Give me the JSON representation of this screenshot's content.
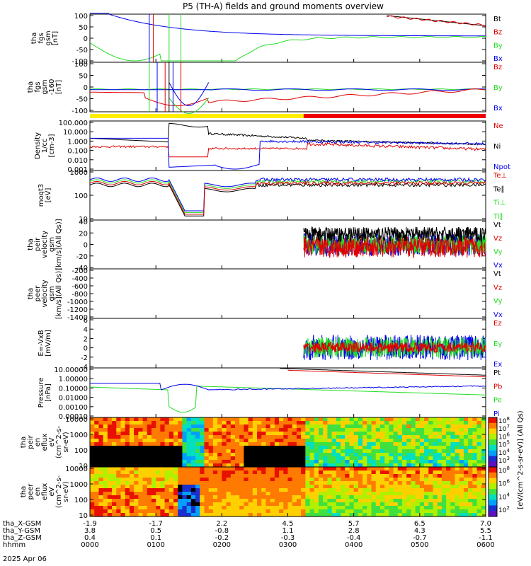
{
  "title": "P5 (TH-A) fields and ground moments overview",
  "colors": {
    "black": "#000000",
    "red": "#e00000",
    "green": "#22dd22",
    "blue": "#0000ee",
    "yellow": "#ffee00",
    "bar_red": "#ee0000"
  },
  "chart_data": [
    {
      "type": "line",
      "id": "p1",
      "ylabel": [
        "tha",
        "fgs",
        "gsm",
        "[nT]"
      ],
      "yticks": [
        "100",
        "50",
        "0",
        "-50",
        "-100"
      ],
      "ylim": [
        -100,
        100
      ],
      "series": [
        {
          "name": "Bt",
          "color": "black"
        },
        {
          "name": "Bz",
          "color": "red"
        },
        {
          "name": "By",
          "color": "green"
        },
        {
          "name": "Bx",
          "color": "blue"
        }
      ]
    },
    {
      "type": "line",
      "id": "p2",
      "ylabel": [
        "tha",
        "fgs",
        "gsm",
        "-160",
        "[nT]"
      ],
      "yticks": [
        "100",
        "50",
        "0",
        "-50",
        "-100"
      ],
      "ylim": [
        -120,
        120
      ],
      "series": [
        {
          "name": "Bz",
          "color": "red"
        },
        {
          "name": "By",
          "color": "green"
        },
        {
          "name": "Bx",
          "color": "blue"
        }
      ]
    },
    {
      "type": "line",
      "id": "p3",
      "log": true,
      "ylabel": [
        "Density",
        "1/cc",
        "[cm-3]"
      ],
      "yticks": [
        "100.000",
        "10.000",
        "1.000",
        "0.100",
        "0.010",
        "0.001"
      ],
      "series": [
        {
          "name": "Ne",
          "color": "red"
        },
        {
          "name": "Ni",
          "color": "black"
        },
        {
          "name": "Npot",
          "color": "blue"
        }
      ]
    },
    {
      "type": "line",
      "id": "p4",
      "log": true,
      "ylabel": [
        "moqt3",
        "[eV]"
      ],
      "yticks": [
        "1000",
        "100",
        "10"
      ],
      "series": [
        {
          "name": "Te⊥",
          "color": "red"
        },
        {
          "name": "Te∥",
          "color": "black"
        },
        {
          "name": "Ti⊥",
          "color": "green"
        },
        {
          "name": "Ti∥",
          "color": "green"
        }
      ]
    },
    {
      "type": "line",
      "id": "p5",
      "ylabel": [
        "tha",
        "peir",
        "velocity",
        "gsm",
        "[km/s](All Qs)]"
      ],
      "yticks": [
        "40",
        "20",
        "0",
        "-20",
        "-40"
      ],
      "ylim": [
        -45,
        45
      ],
      "series": [
        {
          "name": "Vt",
          "color": "black"
        },
        {
          "name": "Vz",
          "color": "red"
        },
        {
          "name": "Vy",
          "color": "green"
        },
        {
          "name": "Vx",
          "color": "blue"
        }
      ]
    },
    {
      "type": "line",
      "id": "p6",
      "ylabel": [
        "tha",
        "peer",
        "velocity",
        "gsm",
        "[km/s](All Qs)]"
      ],
      "yticks": [
        "-200",
        "-400",
        "-600",
        "-800",
        "-1000",
        "-1200",
        "-1400"
      ],
      "ylim": [
        -1450,
        -150
      ],
      "series": [
        {
          "name": "Vt",
          "color": "black"
        },
        {
          "name": "Vz",
          "color": "red"
        },
        {
          "name": "Vy",
          "color": "green"
        },
        {
          "name": "Vx",
          "color": "blue"
        }
      ]
    },
    {
      "type": "line",
      "id": "p7",
      "ylabel": [
        "E=-VxB",
        "[mV/m]"
      ],
      "yticks": [
        "6",
        "4",
        "2",
        "0",
        "-2",
        "-4"
      ],
      "ylim": [
        -4.5,
        6.5
      ],
      "series": [
        {
          "name": "Ez",
          "color": "red"
        },
        {
          "name": "Ey",
          "color": "green"
        },
        {
          "name": "Ex",
          "color": "blue"
        }
      ]
    },
    {
      "type": "line",
      "id": "p8",
      "log": true,
      "ylabel": [
        "Pressure",
        "[nPa]"
      ],
      "yticks": [
        "10.00000",
        "1.00000",
        "0.10000",
        "0.01000",
        "0.00100",
        "0.00010"
      ],
      "series": [
        {
          "name": "Pt",
          "color": "black"
        },
        {
          "name": "Pb",
          "color": "red"
        },
        {
          "name": "Pe",
          "color": "green"
        },
        {
          "name": "Pi",
          "color": "blue"
        }
      ]
    },
    {
      "type": "heatmap",
      "id": "p9",
      "ylabel": [
        "tha",
        "peir",
        "en",
        "eflux",
        "eV",
        "(cm^2-s-",
        "sr-eV)"
      ],
      "yticks": [
        "10000",
        "1000",
        "100",
        "10"
      ]
    },
    {
      "type": "heatmap",
      "id": "p10",
      "ylabel": [
        "tha",
        "peer",
        "en",
        "eflux",
        "eV",
        "(cm^2-s-",
        "sr-eV)"
      ],
      "yticks": [
        "10000",
        "1000",
        "100",
        "10"
      ]
    }
  ],
  "colorbar": {
    "label": "[eV/(cm^2-s-sr-eV)] (All Qs)",
    "ticks_upper": [
      "10^8",
      "10^7",
      "10^6",
      "10^5",
      "10^4",
      "10^3"
    ],
    "ticks_lower": [
      "10^8",
      "10^6",
      "10^4",
      "10^2"
    ]
  },
  "xaxis": {
    "rows": [
      {
        "label": "tha_X-GSM",
        "values": [
          "-1.9",
          "-1.7",
          "2.2",
          "4.5",
          "5.7",
          "6.5",
          "7.0"
        ]
      },
      {
        "label": "tha_Y-GSM",
        "values": [
          "3.8",
          "0.5",
          "-0.8",
          "1.1",
          "2.8",
          "4.3",
          "5.5"
        ]
      },
      {
        "label": "tha_Z-GSM",
        "values": [
          "0.4",
          "0.1",
          "-0.2",
          "-0.3",
          "-0.4",
          "-0.7",
          "-1.1"
        ]
      },
      {
        "label": "hhmm",
        "values": [
          "0000",
          "0100",
          "0200",
          "0300",
          "0400",
          "0500",
          "0600"
        ]
      }
    ],
    "date": "2025 Apr 06"
  }
}
